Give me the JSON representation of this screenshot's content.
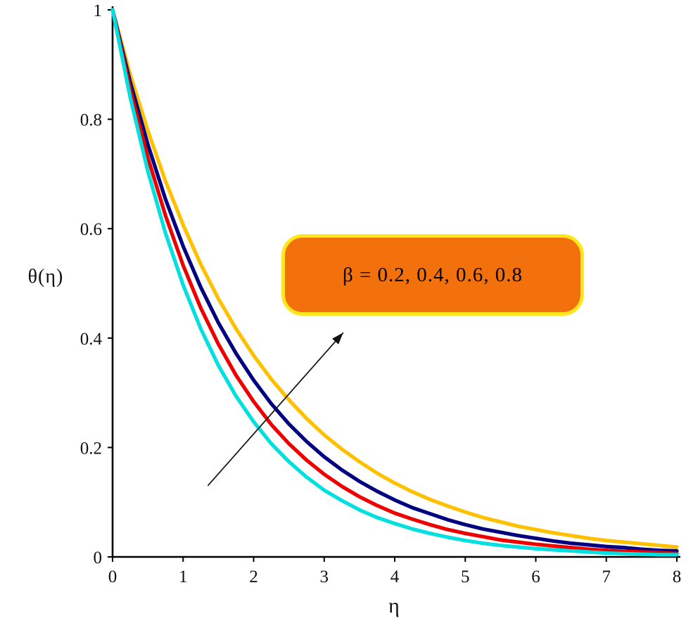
{
  "chart_data": {
    "type": "line",
    "title": "",
    "xlabel": "η",
    "ylabel": "θ(η)",
    "xlim": [
      0,
      8
    ],
    "ylim": [
      0,
      1
    ],
    "x_ticks": [
      0,
      1,
      2,
      3,
      4,
      5,
      6,
      7,
      8
    ],
    "y_ticks": [
      0,
      0.2,
      0.4,
      0.6,
      0.8,
      1
    ],
    "grid": false,
    "legend_position": "none",
    "x": [
      0,
      0.25,
      0.5,
      0.75,
      1,
      1.25,
      1.5,
      1.75,
      2,
      2.25,
      2.5,
      2.75,
      3,
      3.25,
      3.5,
      3.75,
      4,
      4.25,
      4.5,
      4.75,
      5,
      5.25,
      5.5,
      5.75,
      6,
      6.25,
      6.5,
      6.75,
      7,
      7.25,
      7.5,
      7.75,
      8
    ],
    "series": [
      {
        "key": "beta-0-2",
        "name": "β = 0.2",
        "color": "#00E0E0",
        "values": [
          1,
          0.84,
          0.705,
          0.592,
          0.497,
          0.417,
          0.35,
          0.294,
          0.247,
          0.207,
          0.174,
          0.146,
          0.122,
          0.103,
          0.086,
          0.072,
          0.061,
          0.051,
          0.043,
          0.036,
          0.03,
          0.025,
          0.021,
          0.018,
          0.015,
          0.013,
          0.011,
          0.009,
          0.007,
          0.006,
          0.005,
          0.004,
          0.004
        ]
      },
      {
        "key": "beta-0-4",
        "name": "β = 0.4",
        "color": "#EE0000",
        "values": [
          1,
          0.854,
          0.73,
          0.624,
          0.533,
          0.455,
          0.389,
          0.332,
          0.284,
          0.242,
          0.207,
          0.177,
          0.151,
          0.129,
          0.11,
          0.094,
          0.08,
          0.069,
          0.059,
          0.05,
          0.043,
          0.037,
          0.031,
          0.027,
          0.023,
          0.02,
          0.017,
          0.014,
          0.012,
          0.01,
          0.009,
          0.008,
          0.006
        ]
      },
      {
        "key": "beta-0-6",
        "name": "β = 0.6",
        "color": "#000080",
        "values": [
          1,
          0.868,
          0.754,
          0.654,
          0.568,
          0.493,
          0.428,
          0.372,
          0.323,
          0.28,
          0.243,
          0.211,
          0.183,
          0.159,
          0.138,
          0.12,
          0.104,
          0.09,
          0.079,
          0.068,
          0.059,
          0.051,
          0.045,
          0.039,
          0.034,
          0.029,
          0.025,
          0.022,
          0.019,
          0.017,
          0.014,
          0.012,
          0.011
        ]
      },
      {
        "key": "beta-0-8",
        "name": "β = 0.8",
        "color": "#FFC000",
        "values": [
          1,
          0.882,
          0.779,
          0.687,
          0.607,
          0.535,
          0.472,
          0.417,
          0.368,
          0.325,
          0.287,
          0.253,
          0.223,
          0.197,
          0.174,
          0.153,
          0.135,
          0.119,
          0.105,
          0.093,
          0.082,
          0.072,
          0.064,
          0.056,
          0.05,
          0.044,
          0.039,
          0.034,
          0.03,
          0.027,
          0.024,
          0.021,
          0.018
        ]
      }
    ],
    "annotation": {
      "text": "β = 0.2, 0.4, 0.6, 0.8",
      "fill": "#F2710C",
      "border": "#FFE71F"
    },
    "arrow": {
      "from": [
        1.35,
        0.13
      ],
      "to": [
        3.27,
        0.41
      ],
      "color": "#111111"
    }
  }
}
